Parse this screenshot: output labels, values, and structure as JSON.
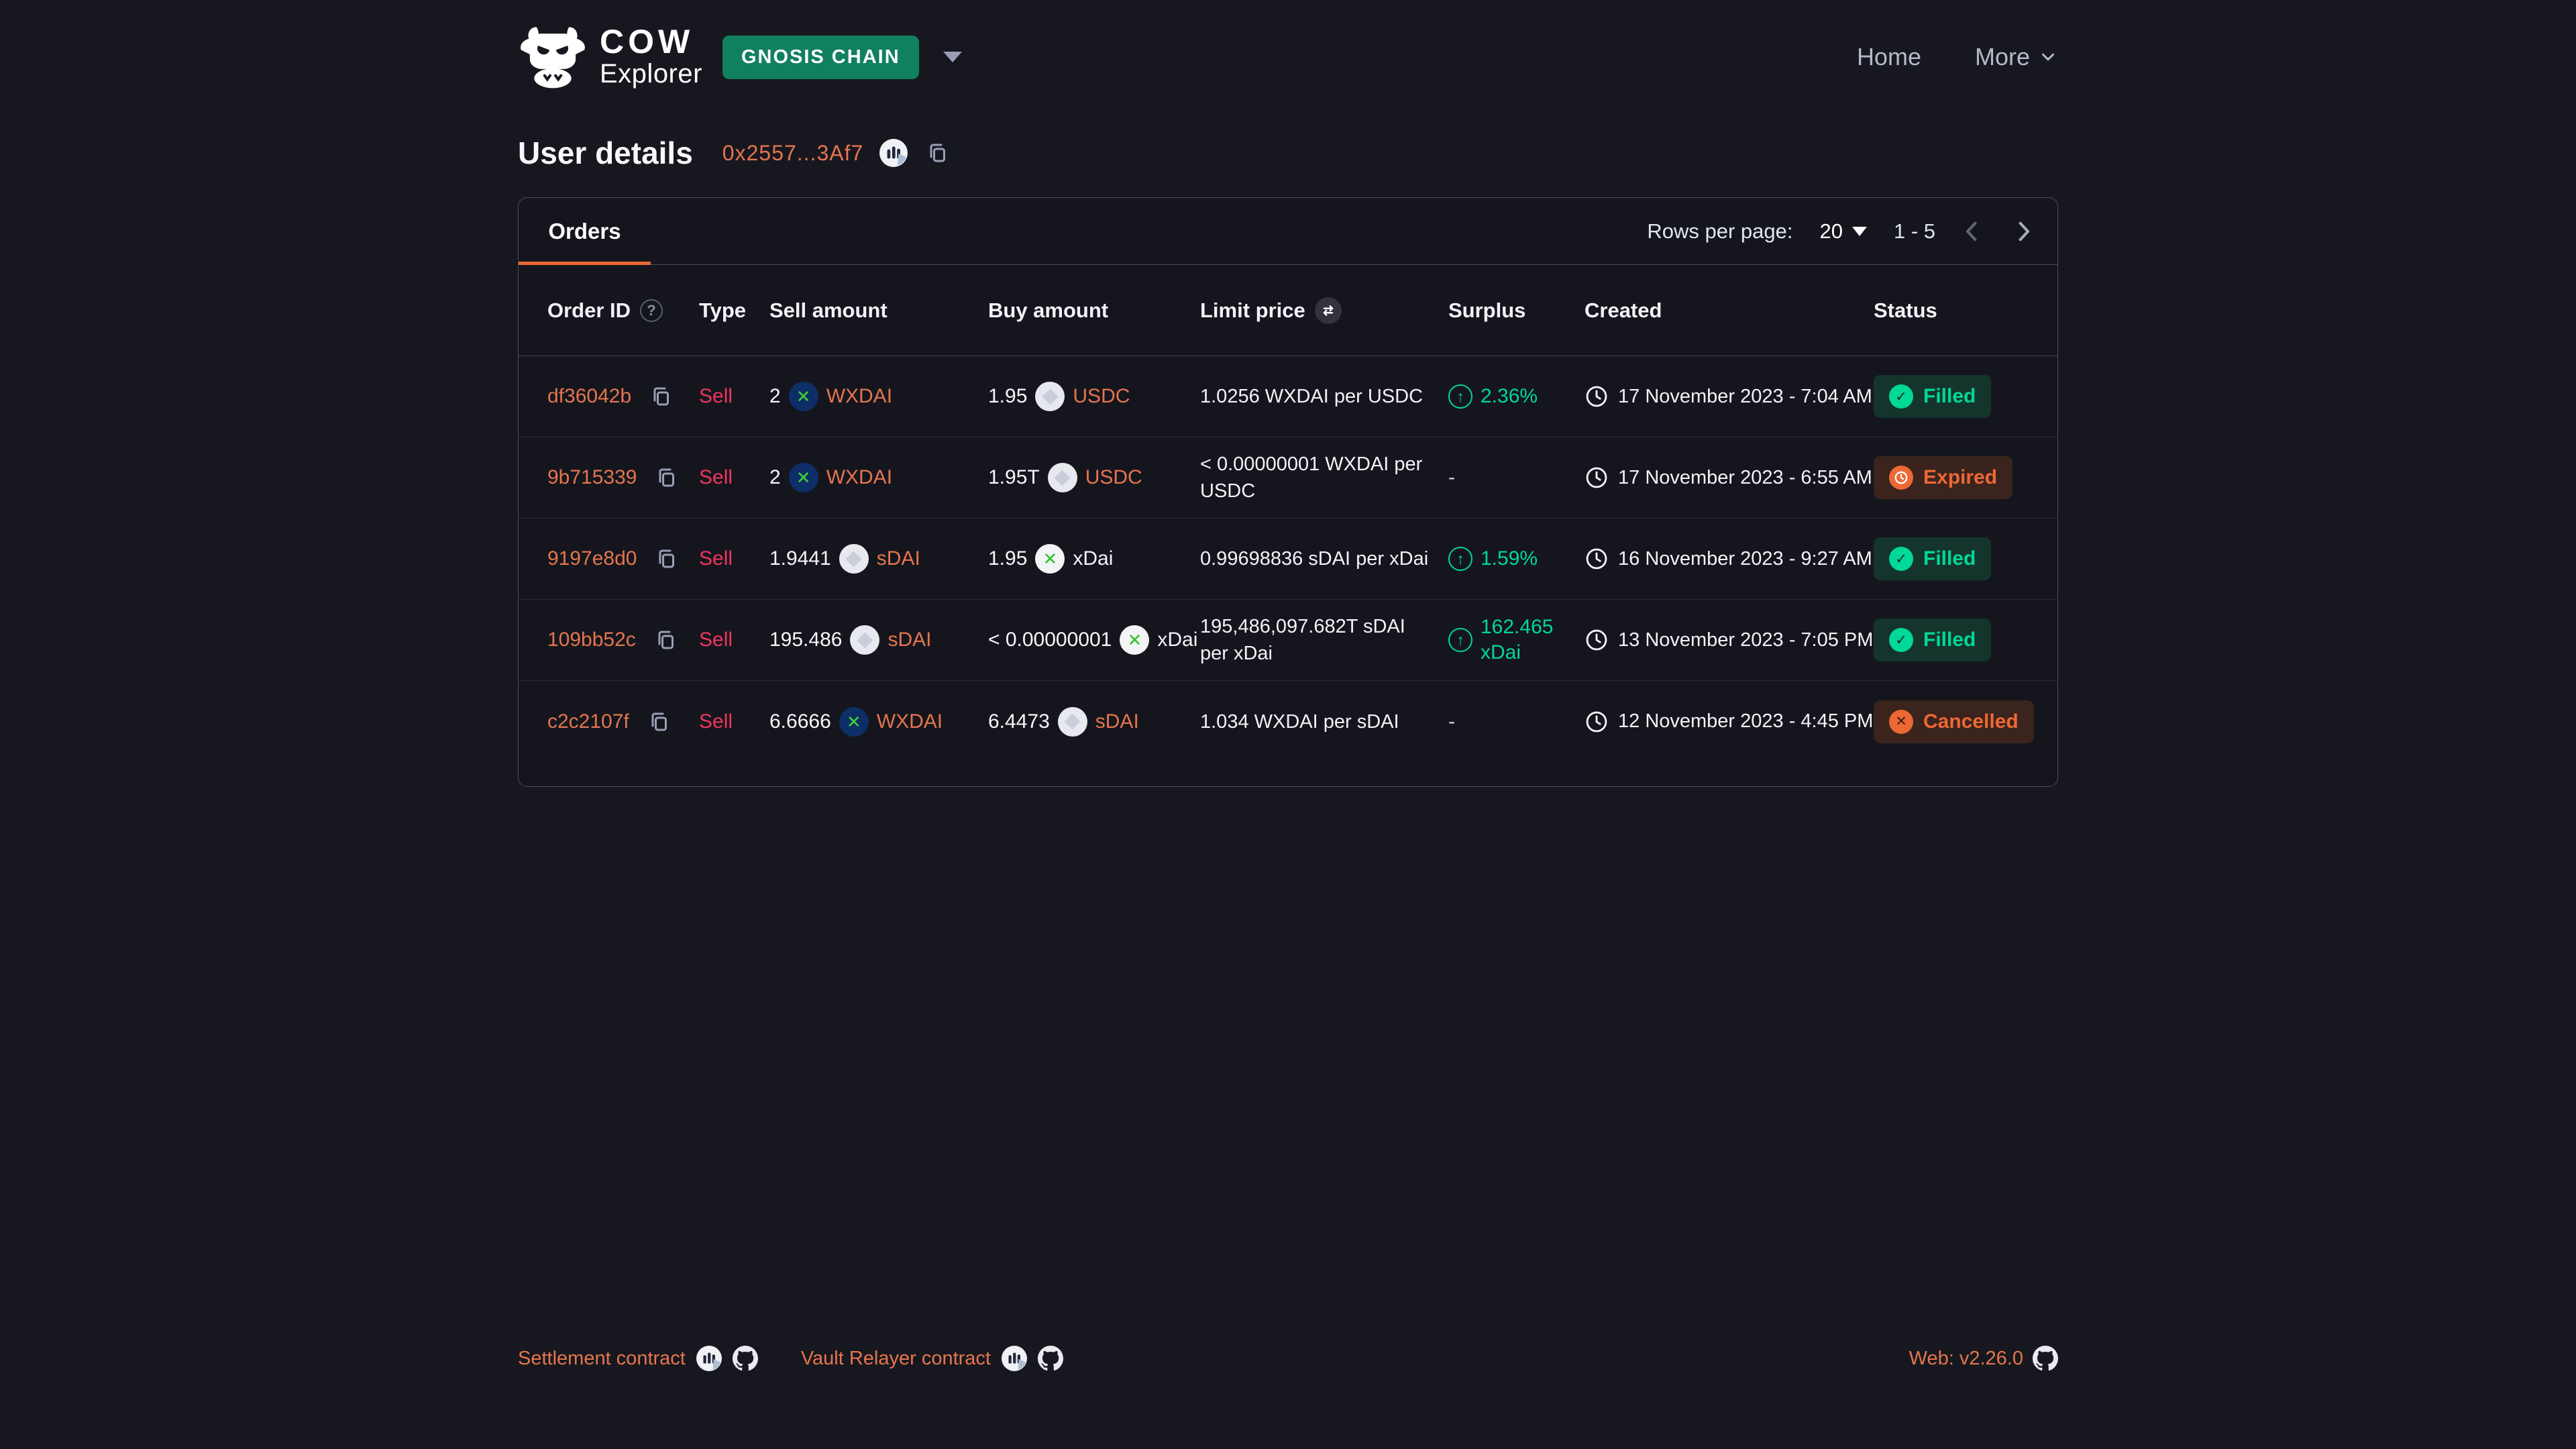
{
  "header": {
    "brand": {
      "title": "COW",
      "subtitle": "Explorer"
    },
    "network_badge": "GNOSIS CHAIN",
    "nav": [
      {
        "label": "Home"
      },
      {
        "label": "More"
      }
    ]
  },
  "page": {
    "title": "User details",
    "address": "0x2557...3Af7"
  },
  "panel": {
    "tabs": [
      {
        "label": "Orders",
        "active": true
      }
    ],
    "pagination": {
      "rows_per_page_label": "Rows per page:",
      "rows_per_page": "20",
      "range": "1 - 5"
    },
    "table": {
      "columns": [
        "Order ID",
        "Type",
        "Sell amount",
        "Buy amount",
        "Limit price",
        "Surplus",
        "Created",
        "Status"
      ],
      "rows": [
        {
          "order_id": "df36042b",
          "type": "Sell",
          "sell": {
            "amount": "2",
            "token": "WXDAI",
            "icon": "wxdai",
            "link": true
          },
          "buy": {
            "amount": "1.95",
            "token": "USDC",
            "icon": "generic",
            "link": true
          },
          "limit_price": "1.0256 WXDAI per USDC",
          "surplus": {
            "text": "2.36%",
            "positive": true
          },
          "created": "17 November 2023 - 7:04 AM",
          "status": {
            "label": "Filled",
            "kind": "filled"
          }
        },
        {
          "order_id": "9b715339",
          "type": "Sell",
          "sell": {
            "amount": "2",
            "token": "WXDAI",
            "icon": "wxdai",
            "link": true
          },
          "buy": {
            "amount": "1.95T",
            "token": "USDC",
            "icon": "generic",
            "link": true
          },
          "limit_price": "< 0.00000001 WXDAI per USDC",
          "surplus": {
            "text": "-",
            "positive": false
          },
          "created": "17 November 2023 - 6:55 AM",
          "status": {
            "label": "Expired",
            "kind": "expired"
          }
        },
        {
          "order_id": "9197e8d0",
          "type": "Sell",
          "sell": {
            "amount": "1.9441",
            "token": "sDAI",
            "icon": "generic",
            "link": true
          },
          "buy": {
            "amount": "1.95",
            "token": "xDai",
            "icon": "xdai",
            "link": false
          },
          "limit_price": "0.99698836 sDAI per xDai",
          "surplus": {
            "text": "1.59%",
            "positive": true
          },
          "created": "16 November 2023 - 9:27 AM",
          "status": {
            "label": "Filled",
            "kind": "filled"
          }
        },
        {
          "order_id": "109bb52c",
          "type": "Sell",
          "sell": {
            "amount": "195.486",
            "token": "sDAI",
            "icon": "generic",
            "link": true
          },
          "buy": {
            "amount": "< 0.00000001",
            "token": "xDai",
            "icon": "xdai",
            "link": false
          },
          "limit_price": "195,486,097.682T sDAI per xDai",
          "surplus": {
            "text": "162.465 xDai",
            "positive": true
          },
          "created": "13 November 2023 - 7:05 PM",
          "status": {
            "label": "Filled",
            "kind": "filled"
          }
        },
        {
          "order_id": "c2c2107f",
          "type": "Sell",
          "sell": {
            "amount": "6.6666",
            "token": "WXDAI",
            "icon": "wxdai",
            "link": true
          },
          "buy": {
            "amount": "6.4473",
            "token": "sDAI",
            "icon": "generic",
            "link": true
          },
          "limit_price": "1.034 WXDAI per sDAI",
          "surplus": {
            "text": "-",
            "positive": false
          },
          "created": "12 November 2023 - 4:45 PM",
          "status": {
            "label": "Cancelled",
            "kind": "cancelled"
          }
        }
      ]
    }
  },
  "footer": {
    "links": [
      {
        "label": "Settlement contract"
      },
      {
        "label": "Vault Relayer contract"
      }
    ],
    "version": "Web: v2.26.0"
  },
  "icons": {
    "help": "?",
    "surplus_up": "↑",
    "check": "✓",
    "cross": "✕",
    "dash": "-"
  },
  "colors": {
    "page_bg": "#17181F",
    "panel_bg": "#15161D",
    "border": "#4A4B56",
    "accent_orange": "#ED6834",
    "link_orange": "#E5754E",
    "sell_pink": "#EE355F",
    "positive_green": "#00D897",
    "network_badge_green": "#10805F",
    "filled_badge_bg": "#14352C",
    "expired_badge_bg": "#3A241D"
  }
}
